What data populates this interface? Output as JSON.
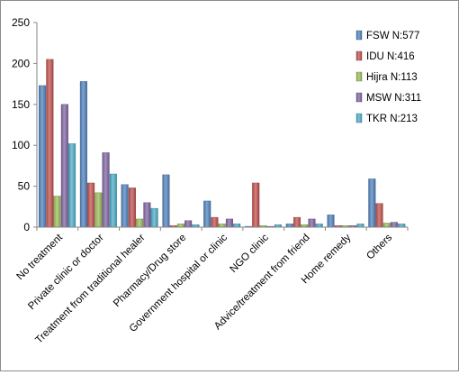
{
  "chart_data": {
    "type": "bar",
    "title": "",
    "xlabel": "",
    "ylabel": "",
    "ylim": [
      0,
      250
    ],
    "yticks": [
      0,
      50,
      100,
      150,
      200,
      250
    ],
    "grid": false,
    "legend_position": "top-right",
    "categories": [
      "No treatment",
      "Private clinic or doctor",
      "Treatment from traditional healer",
      "Pharmacy/Drug store",
      "Government hospital or clinic",
      "NGO clinic",
      "Advice/treatment from friend",
      "Home remedy",
      "Others"
    ],
    "series": [
      {
        "name": "FSW N:577",
        "color": "#4f81bd",
        "values": [
          173,
          178,
          52,
          64,
          32,
          1,
          4,
          15,
          59
        ]
      },
      {
        "name": "IDU N:416",
        "color": "#c0504d",
        "values": [
          205,
          54,
          48,
          2,
          12,
          54,
          12,
          2,
          29
        ]
      },
      {
        "name": "Hijra N:113",
        "color": "#9bbb59",
        "values": [
          38,
          42,
          10,
          4,
          4,
          2,
          3,
          2,
          5
        ]
      },
      {
        "name": "MSW N:311",
        "color": "#8064a2",
        "values": [
          150,
          91,
          30,
          8,
          10,
          1,
          10,
          2,
          6
        ]
      },
      {
        "name": "TKR N:213",
        "color": "#4bacc6",
        "values": [
          102,
          65,
          23,
          3,
          4,
          3,
          4,
          4,
          4
        ]
      }
    ]
  }
}
